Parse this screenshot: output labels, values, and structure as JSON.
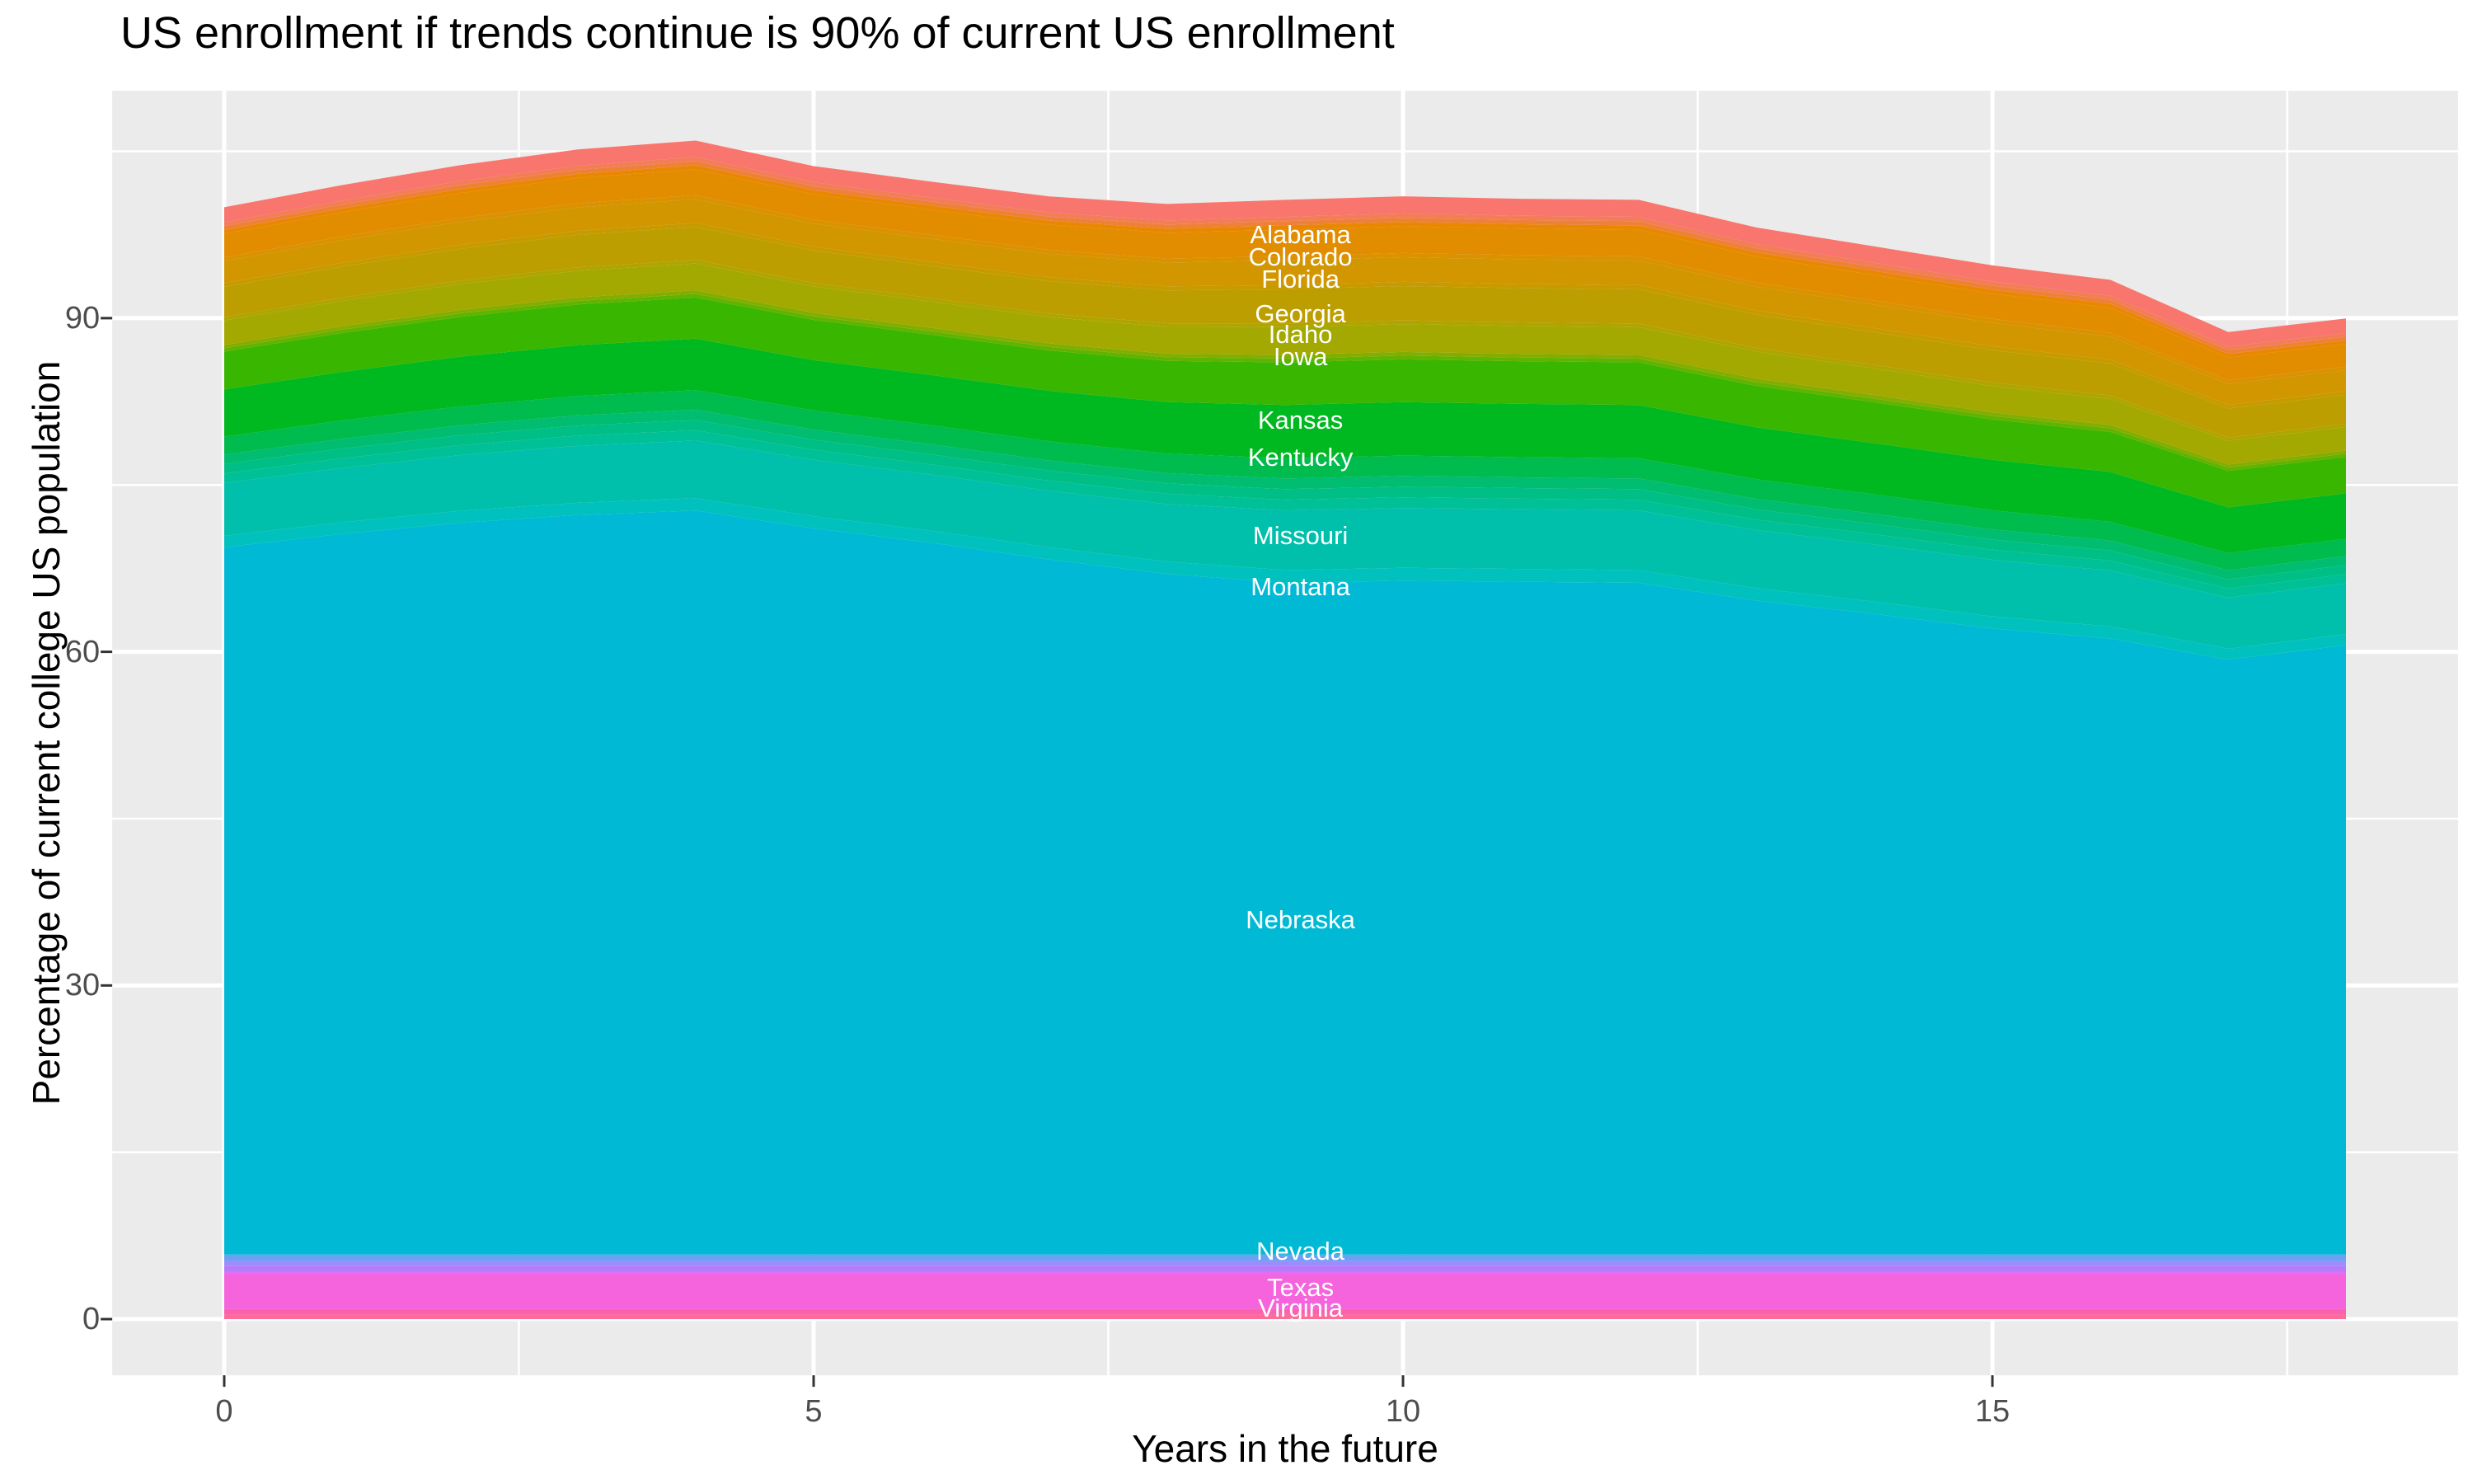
{
  "chart_data": {
    "type": "area",
    "stacked": true,
    "title": "US enrollment if trends continue is 90% of current US enrollment",
    "xlabel": "Years in the future",
    "ylabel": "Percentage of current college US population",
    "grid": true,
    "legend": false,
    "panel_bg": "#EBEBEB",
    "grid_color": "#FFFFFF",
    "tick_color": "#333333",
    "axis_text_color": "#4D4D4D",
    "label_text_color": "#FFFFFF",
    "x": [
      0,
      1,
      2,
      3,
      4,
      5,
      6,
      7,
      8,
      9,
      10,
      11,
      12,
      13,
      14,
      15,
      16,
      17,
      18
    ],
    "x_ticks": [
      0,
      5,
      10,
      15
    ],
    "x_minor_ticks": [
      2.5,
      7.5,
      12.5,
      17.5
    ],
    "y_ticks": [
      0,
      30,
      60,
      90
    ],
    "y_minor_ticks": [
      15,
      45,
      75,
      105
    ],
    "x_range": [
      -0.95,
      18.95
    ],
    "y_range": [
      -5.05,
      110.45
    ],
    "total_percent": [
      100,
      102,
      103.8,
      105.2,
      106,
      103.7,
      102.3,
      101,
      100.3,
      100.7,
      101,
      100.8,
      100.7,
      98.2,
      96.5,
      94.8,
      93.5,
      88.8,
      90
    ],
    "above_scale": [
      0.85,
      0.872,
      0.894,
      0.914,
      0.925,
      0.906,
      0.903,
      0.908,
      0.925,
      0.958,
      0.961,
      0.958,
      0.958,
      0.933,
      0.919,
      0.908,
      0.897,
      0.819,
      0.817
    ],
    "series": [
      {
        "name": "wyoming-filler",
        "color": "#FF6B97",
        "base": 0.4,
        "scale": "below"
      },
      {
        "name": "virginia",
        "state": "Virginia",
        "color": "#FC61AC",
        "values": [
          0.5,
          0.5,
          0.5,
          0.5,
          0.5,
          0.5,
          0.5,
          0.5,
          0.5,
          0.5,
          0.5,
          0.5,
          0.5,
          0.5,
          0.5,
          0.5,
          0.5,
          0.5,
          0.5
        ]
      },
      {
        "name": "texas",
        "state": "Texas",
        "color": "#F564DC",
        "values": [
          3.1,
          3.1,
          3.1,
          3.1,
          3.1,
          3.1,
          3.1,
          3.1,
          3.1,
          3.1,
          3.1,
          3.1,
          3.1,
          3.1,
          3.1,
          3.1,
          3.1,
          3.1,
          3.1
        ]
      },
      {
        "name": "oklahoma-filler",
        "color": "#E46DF2",
        "base": 0.3,
        "scale": "below"
      },
      {
        "name": "newyork-filler",
        "color": "#B57CF9",
        "base": 0.5,
        "scale": "below"
      },
      {
        "name": "newhampshire-filler",
        "color": "#9E8CFE",
        "base": 0.4,
        "scale": "below"
      },
      {
        "name": "nevada",
        "state": "Nevada",
        "color": "#6F9FF5",
        "values": [
          0.6,
          0.6,
          0.6,
          0.6,
          0.6,
          0.6,
          0.6,
          0.6,
          0.6,
          0.6,
          0.6,
          0.6,
          0.6,
          0.6,
          0.6,
          0.6,
          0.6,
          0.6,
          0.6
        ]
      },
      {
        "name": "nebraska",
        "state": "Nebraska",
        "color": "#00BAD5",
        "values": [
          63.6,
          64.8,
          65.8,
          66.5,
          66.9,
          65.3,
          64.0,
          62.5,
          61.2,
          60.4,
          60.6,
          60.5,
          60.4,
          58.8,
          57.6,
          56.3,
          55.4,
          53.5,
          54.8
        ]
      },
      {
        "name": "montana",
        "state": "Montana",
        "color": "#00C1BE",
        "values": [
          1.02,
          1.05,
          1.07,
          1.1,
          1.11,
          1.09,
          1.08,
          1.09,
          1.11,
          1.15,
          1.15,
          1.15,
          1.15,
          1.12,
          1.1,
          1.09,
          1.08,
          0.98,
          0.98
        ]
      },
      {
        "name": "missouri",
        "state": "Missouri",
        "color": "#00C0AC",
        "values": [
          4.76,
          4.88,
          5.01,
          5.12,
          5.18,
          5.07,
          5.06,
          5.08,
          5.18,
          5.36,
          5.38,
          5.36,
          5.36,
          5.22,
          5.15,
          5.08,
          5.02,
          4.59,
          4.58
        ]
      },
      {
        "name": "minnesota-filler",
        "color": "#00C098",
        "base": 1.0,
        "scale": "above"
      },
      {
        "name": "massachusetts-filler",
        "color": "#00BF86",
        "base": 1.0,
        "scale": "above"
      },
      {
        "name": "louisiana-filler",
        "color": "#00BD71",
        "base": 1.0,
        "scale": "above"
      },
      {
        "name": "kentucky",
        "state": "Kentucky",
        "color": "#00BB4E",
        "values": [
          1.62,
          1.66,
          1.7,
          1.74,
          1.76,
          1.72,
          1.72,
          1.73,
          1.76,
          1.82,
          1.83,
          1.82,
          1.82,
          1.77,
          1.75,
          1.73,
          1.7,
          1.56,
          1.55
        ]
      },
      {
        "name": "kansas",
        "state": "Kansas",
        "color": "#00B81F",
        "values": [
          4.25,
          4.36,
          4.47,
          4.57,
          4.63,
          4.53,
          4.52,
          4.54,
          4.63,
          4.79,
          4.81,
          4.79,
          4.79,
          4.67,
          4.6,
          4.54,
          4.49,
          4.1,
          4.09
        ]
      },
      {
        "name": "iowa",
        "state": "Iowa",
        "color": "#39B600",
        "values": [
          3.4,
          3.49,
          3.58,
          3.66,
          3.7,
          3.62,
          3.61,
          3.63,
          3.7,
          3.83,
          3.84,
          3.83,
          3.83,
          3.73,
          3.68,
          3.63,
          3.59,
          3.28,
          3.27
        ]
      },
      {
        "name": "indiana-filler",
        "color": "#62B200",
        "base": 0.35,
        "scale": "above"
      },
      {
        "name": "illinois-filler",
        "color": "#83AE00",
        "base": 0.35,
        "scale": "above"
      },
      {
        "name": "idaho",
        "state": "Idaho",
        "color": "#A3A900",
        "values": [
          2.21,
          2.27,
          2.32,
          2.38,
          2.41,
          2.36,
          2.35,
          2.36,
          2.41,
          2.49,
          2.5,
          2.49,
          2.49,
          2.43,
          2.39,
          2.36,
          2.33,
          2.13,
          2.12
        ]
      },
      {
        "name": "hawaii-filler",
        "color": "#B0A400",
        "base": 0.35,
        "scale": "above"
      },
      {
        "name": "georgia",
        "state": "Georgia",
        "color": "#BC9E00",
        "values": [
          2.72,
          2.79,
          2.86,
          2.92,
          2.96,
          2.9,
          2.89,
          2.91,
          2.96,
          3.07,
          3.08,
          3.07,
          3.07,
          2.99,
          2.94,
          2.91,
          2.87,
          2.62,
          2.61
        ]
      },
      {
        "name": "delaware-filler",
        "color": "#C79B00",
        "base": 0.4,
        "scale": "above"
      },
      {
        "name": "florida",
        "state": "Florida",
        "color": "#D19600",
        "values": [
          1.96,
          2.01,
          2.06,
          2.1,
          2.13,
          2.08,
          2.08,
          2.09,
          2.13,
          2.2,
          2.21,
          2.2,
          2.2,
          2.15,
          2.11,
          2.09,
          2.06,
          1.88,
          1.88
        ]
      },
      {
        "name": "connecticut-filler",
        "color": "#DA9200",
        "base": 0.4,
        "scale": "above"
      },
      {
        "name": "colorado",
        "state": "Colorado",
        "color": "#E28D00",
        "values": [
          2.13,
          2.18,
          2.24,
          2.29,
          2.31,
          2.27,
          2.26,
          2.27,
          2.31,
          2.4,
          2.4,
          2.4,
          2.4,
          2.33,
          2.3,
          2.27,
          2.24,
          2.05,
          2.04
        ]
      },
      {
        "name": "california-filler",
        "color": "#EA8700",
        "base": 0.4,
        "scale": "above"
      },
      {
        "name": "arizona-filler",
        "color": "#EE8138",
        "base": 0.4,
        "scale": "above"
      },
      {
        "name": "alaska-filler",
        "color": "#F37D57",
        "base": 0.4,
        "scale": "above"
      },
      {
        "name": "alabama",
        "state": "Alabama",
        "color": "#F8766D",
        "values": [
          1.36,
          1.4,
          1.43,
          1.46,
          1.48,
          1.45,
          1.44,
          1.45,
          1.48,
          1.53,
          1.54,
          1.53,
          1.53,
          1.49,
          1.47,
          1.45,
          1.44,
          1.31,
          1.31
        ]
      }
    ],
    "state_labels": [
      {
        "text": "Alabama",
        "x": 9.13,
        "y": 97.5
      },
      {
        "text": "Colorado",
        "x": 9.13,
        "y": 95.5
      },
      {
        "text": "Florida",
        "x": 9.13,
        "y": 93.5
      },
      {
        "text": "Georgia",
        "x": 9.13,
        "y": 90.4
      },
      {
        "text": "Idaho",
        "x": 9.13,
        "y": 88.5
      },
      {
        "text": "Iowa",
        "x": 9.13,
        "y": 86.5
      },
      {
        "text": "Kansas",
        "x": 9.13,
        "y": 80.8
      },
      {
        "text": "Kentucky",
        "x": 9.13,
        "y": 77.5
      },
      {
        "text": "Missouri",
        "x": 9.13,
        "y": 70.4
      },
      {
        "text": "Montana",
        "x": 9.13,
        "y": 65.8
      },
      {
        "text": "Nebraska",
        "x": 9.13,
        "y": 35.9
      },
      {
        "text": "Nevada",
        "x": 9.13,
        "y": 6.1
      },
      {
        "text": "Texas",
        "x": 9.13,
        "y": 2.8
      },
      {
        "text": "Virginia",
        "x": 9.13,
        "y": 0.96
      }
    ]
  }
}
